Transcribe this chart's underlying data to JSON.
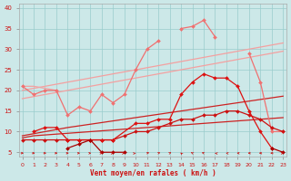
{
  "bg_color": "#cce8e8",
  "grid_color": "#99cccc",
  "xlabel": "Vent moyen/en rafales ( km/h )",
  "xlabel_color": "#cc1111",
  "tick_color": "#cc1111",
  "ylim": [
    4,
    41
  ],
  "xlim": [
    -0.3,
    23.3
  ],
  "yticks": [
    5,
    10,
    15,
    20,
    25,
    30,
    35,
    40
  ],
  "xticks": [
    0,
    1,
    2,
    3,
    4,
    5,
    6,
    7,
    8,
    9,
    10,
    11,
    12,
    13,
    14,
    15,
    16,
    17,
    18,
    19,
    20,
    21,
    22,
    23
  ],
  "series": [
    {
      "x": [
        0,
        1,
        2,
        3,
        4,
        5,
        6,
        7,
        8,
        9,
        10,
        11,
        12,
        13,
        14,
        15,
        16,
        17,
        18,
        19,
        20,
        21,
        22,
        23
      ],
      "y": [
        18,
        18.5,
        19,
        19.5,
        20,
        20.5,
        21,
        21.5,
        22,
        22.5,
        23,
        23.5,
        24,
        24.5,
        25,
        25.5,
        26,
        26.5,
        27,
        27.5,
        28,
        28.5,
        29,
        29.5
      ],
      "color": "#f4a0a0",
      "lw": 0.9,
      "marker": "None",
      "ms": 0
    },
    {
      "x": [
        0,
        1,
        2,
        3,
        4,
        5,
        6,
        7,
        8,
        9,
        10,
        11,
        12,
        13,
        14,
        15,
        16,
        17,
        18,
        19,
        20,
        21,
        22,
        23
      ],
      "y": [
        20,
        20.5,
        21,
        21.5,
        22,
        22.5,
        23,
        23.5,
        24,
        24.5,
        25,
        25.5,
        26,
        26.5,
        27,
        27.5,
        28,
        28.5,
        29,
        29.5,
        30,
        30.5,
        31,
        31.5
      ],
      "color": "#f4a0a0",
      "lw": 0.9,
      "marker": "None",
      "ms": 0
    },
    {
      "x": [
        0,
        1,
        2,
        3,
        4,
        5,
        6,
        7,
        8,
        9,
        10,
        11,
        12,
        13,
        14,
        15,
        16,
        17,
        18,
        19,
        20,
        21,
        22,
        23
      ],
      "y": [
        21,
        19,
        20,
        20,
        14,
        16,
        15,
        19,
        17,
        19,
        25,
        30,
        32,
        null,
        35,
        35.5,
        37,
        33,
        null,
        null,
        null,
        null,
        null,
        null
      ],
      "color": "#f07070",
      "lw": 0.9,
      "marker": "D",
      "ms": 2.0
    },
    {
      "x": [
        19,
        20,
        21,
        22,
        23
      ],
      "y": [
        null,
        29,
        22,
        10,
        10
      ],
      "color": "#f07070",
      "lw": 0.9,
      "marker": "D",
      "ms": 2.0
    },
    {
      "x": [
        0,
        1,
        2,
        3,
        4,
        5,
        6,
        7,
        8,
        9,
        10,
        11,
        12,
        13,
        14,
        15,
        16,
        17,
        18,
        19,
        20,
        21,
        22,
        23
      ],
      "y": [
        21,
        21,
        20.5,
        20,
        null,
        null,
        null,
        null,
        null,
        null,
        null,
        null,
        null,
        null,
        null,
        null,
        null,
        null,
        null,
        null,
        null,
        null,
        null,
        null
      ],
      "color": "#f4a0a0",
      "lw": 0.9,
      "marker": "None",
      "ms": 0
    },
    {
      "x": [
        0,
        1,
        2,
        3,
        4,
        5,
        6,
        7,
        8,
        9,
        10,
        11,
        12,
        13,
        14,
        15,
        16,
        17,
        18,
        19,
        20,
        21,
        22,
        23
      ],
      "y": [
        9,
        9.5,
        10,
        10.5,
        11,
        11.4,
        11.8,
        12.2,
        12.6,
        13,
        13.4,
        13.8,
        14.2,
        14.6,
        15,
        15.4,
        15.8,
        16.2,
        16.6,
        17,
        17.4,
        17.8,
        18.2,
        18.6
      ],
      "color": "#cc2222",
      "lw": 0.9,
      "marker": "None",
      "ms": 0
    },
    {
      "x": [
        0,
        1,
        2,
        3,
        4,
        5,
        6,
        7,
        8,
        9,
        10,
        11,
        12,
        13,
        14,
        15,
        16,
        17,
        18,
        19,
        20,
        21,
        22,
        23
      ],
      "y": [
        8.5,
        9,
        9.2,
        9.4,
        9.6,
        9.8,
        10,
        10.2,
        10.4,
        10.6,
        10.8,
        11,
        11.2,
        11.4,
        11.6,
        11.8,
        12,
        12.2,
        12.4,
        12.6,
        12.8,
        13,
        13.2,
        13.4
      ],
      "color": "#cc2222",
      "lw": 0.9,
      "marker": "None",
      "ms": 0
    },
    {
      "x": [
        0,
        1,
        2,
        3,
        4,
        5,
        6,
        7,
        8,
        9,
        10,
        11,
        12,
        13,
        14,
        15,
        16,
        17,
        18,
        19,
        20,
        21,
        22,
        23
      ],
      "y": [
        8,
        8,
        8,
        8,
        8,
        8,
        8,
        8,
        8,
        9,
        10,
        10,
        11,
        12,
        13,
        13,
        14,
        14,
        15,
        15,
        14,
        13,
        11,
        10
      ],
      "color": "#cc1111",
      "lw": 0.9,
      "marker": "D",
      "ms": 2.0
    },
    {
      "x": [
        1,
        2,
        3,
        4,
        5,
        6,
        7,
        8,
        10,
        11,
        12,
        13,
        14,
        15,
        16,
        17,
        18,
        19,
        20,
        21,
        22
      ],
      "y": [
        10,
        11,
        11,
        8,
        8,
        8,
        8,
        8,
        12,
        12,
        13,
        13,
        19,
        22,
        24,
        23,
        23,
        21,
        15,
        10,
        6
      ],
      "color": "#dd1111",
      "lw": 0.9,
      "marker": "D",
      "ms": 2.0
    },
    {
      "x": [
        4,
        5,
        6,
        7,
        8,
        9
      ],
      "y": [
        6,
        7,
        8,
        5,
        5,
        5
      ],
      "color": "#aa0000",
      "lw": 0.9,
      "marker": "D",
      "ms": 2.0
    },
    {
      "x": [
        20,
        21,
        22,
        23
      ],
      "y": [
        null,
        null,
        6,
        5
      ],
      "color": "#aa0000",
      "lw": 0.9,
      "marker": "D",
      "ms": 2.0
    }
  ],
  "arrow_angles_deg": [
    90,
    85,
    80,
    75,
    70,
    65,
    60,
    55,
    50,
    45,
    40,
    35,
    30,
    25,
    350,
    340,
    330,
    320,
    310,
    300,
    290,
    280,
    270,
    50
  ]
}
